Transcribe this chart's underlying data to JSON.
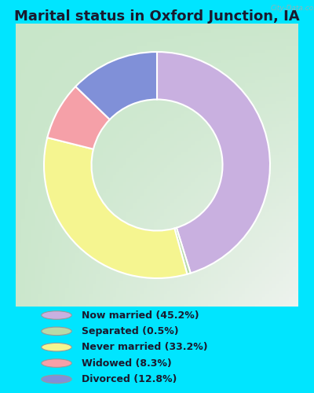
{
  "title": "Marital status in Oxford Junction, IA",
  "title_fontsize": 13,
  "background_color": "#00e5ff",
  "chart_bg_gradient_left": "#c8e6c9",
  "chart_bg_gradient_right": "#f5f5f5",
  "watermark": "City-Data.com",
  "slices": [
    45.2,
    0.5,
    33.2,
    8.3,
    12.8
  ],
  "labels": [
    "Now married (45.2%)",
    "Separated (0.5%)",
    "Never married (33.2%)",
    "Widowed (8.3%)",
    "Divorced (12.8%)"
  ],
  "colors": [
    "#c9b0e0",
    "#b8d9a8",
    "#f5f590",
    "#f5a0a8",
    "#8090d8"
  ],
  "legend_colors": [
    "#c9b0e0",
    "#b8d9a8",
    "#f5f590",
    "#f5a0a8",
    "#8090d8"
  ],
  "donut_width": 0.42,
  "startangle": 90,
  "figsize": [
    4.0,
    5.0
  ],
  "dpi": 100
}
